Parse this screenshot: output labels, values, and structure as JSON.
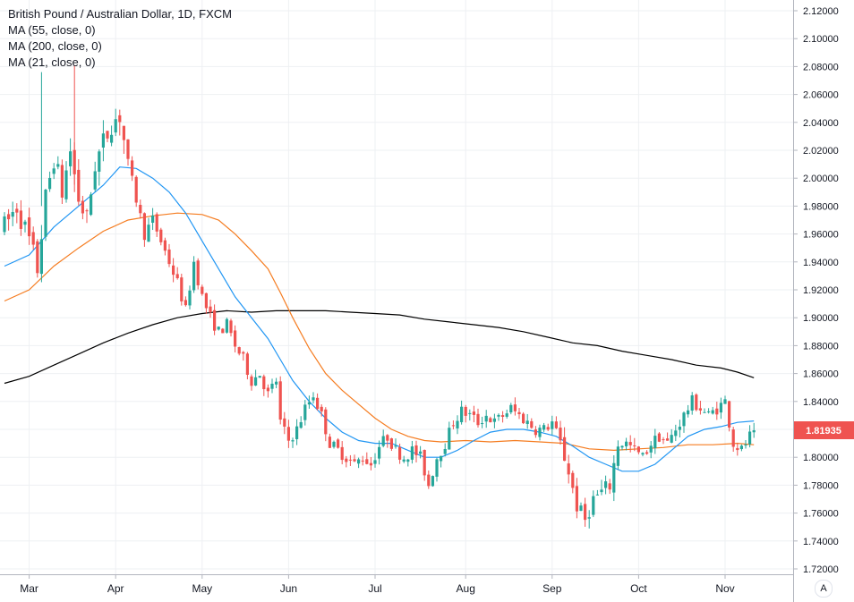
{
  "legend": {
    "title": "British Pound / Australian Dollar, 1D, FXCM",
    "ma55": "MA (55, close, 0)",
    "ma200": "MA (200, close, 0)",
    "ma21": "MA (21, close, 0)"
  },
  "price_label": "1.81935",
  "axis_mode_button": "A",
  "colors": {
    "up": "#26a69a",
    "down": "#ef5350",
    "ma21": "#2196f3",
    "ma55": "#f57c20",
    "ma200": "#000000",
    "price_tag": "#ef5350",
    "grid": "#eef0f3"
  },
  "chart_data": {
    "type": "candlestick",
    "y_ticks": [
      "2.12000",
      "2.10000",
      "2.08000",
      "2.06000",
      "2.04000",
      "2.02000",
      "2.00000",
      "1.98000",
      "1.96000",
      "1.94000",
      "1.92000",
      "1.90000",
      "1.88000",
      "1.86000",
      "1.84000",
      "1.82000",
      "1.80000",
      "1.78000",
      "1.76000",
      "1.74000",
      "1.72000"
    ],
    "ylim": [
      1.715,
      2.125
    ],
    "x_labels": [
      "Mar",
      "Apr",
      "May",
      "Jun",
      "Jul",
      "Aug",
      "Sep",
      "Oct",
      "Nov"
    ],
    "x_label_index": [
      6,
      27,
      48,
      69,
      90,
      112,
      133,
      154,
      175
    ],
    "last_price": 1.81935,
    "close_path": [
      [
        0,
        1.965
      ],
      [
        3,
        1.98
      ],
      [
        6,
        1.955
      ],
      [
        8,
        1.935
      ],
      [
        10,
        1.985
      ],
      [
        12,
        2.015
      ],
      [
        14,
        1.99
      ],
      [
        16,
        2.02
      ],
      [
        18,
        1.985
      ],
      [
        20,
        1.97
      ],
      [
        22,
        2.01
      ],
      [
        24,
        2.025
      ],
      [
        26,
        2.04
      ],
      [
        28,
        2.045
      ],
      [
        30,
        2.01
      ],
      [
        32,
        1.985
      ],
      [
        34,
        1.96
      ],
      [
        36,
        1.97
      ],
      [
        38,
        1.955
      ],
      [
        40,
        1.94
      ],
      [
        42,
        1.925
      ],
      [
        44,
        1.905
      ],
      [
        46,
        1.94
      ],
      [
        48,
        1.915
      ],
      [
        50,
        1.9
      ],
      [
        52,
        1.89
      ],
      [
        54,
        1.895
      ],
      [
        56,
        1.88
      ],
      [
        58,
        1.87
      ],
      [
        60,
        1.855
      ],
      [
        62,
        1.86
      ],
      [
        64,
        1.845
      ],
      [
        66,
        1.855
      ],
      [
        67,
        1.825
      ],
      [
        69,
        1.812
      ],
      [
        71,
        1.82
      ],
      [
        73,
        1.835
      ],
      [
        75,
        1.845
      ],
      [
        77,
        1.83
      ],
      [
        79,
        1.81
      ],
      [
        81,
        1.805
      ],
      [
        83,
        1.8
      ],
      [
        85,
        1.795
      ],
      [
        87,
        1.8
      ],
      [
        89,
        1.795
      ],
      [
        91,
        1.808
      ],
      [
        93,
        1.815
      ],
      [
        95,
        1.805
      ],
      [
        97,
        1.8
      ],
      [
        99,
        1.805
      ],
      [
        101,
        1.8
      ],
      [
        103,
        1.78
      ],
      [
        105,
        1.8
      ],
      [
        107,
        1.81
      ],
      [
        109,
        1.825
      ],
      [
        111,
        1.833
      ],
      [
        113,
        1.83
      ],
      [
        115,
        1.825
      ],
      [
        117,
        1.83
      ],
      [
        119,
        1.825
      ],
      [
        121,
        1.83
      ],
      [
        123,
        1.835
      ],
      [
        125,
        1.83
      ],
      [
        127,
        1.825
      ],
      [
        129,
        1.82
      ],
      [
        131,
        1.82
      ],
      [
        133,
        1.825
      ],
      [
        135,
        1.81
      ],
      [
        137,
        1.79
      ],
      [
        139,
        1.765
      ],
      [
        141,
        1.755
      ],
      [
        143,
        1.77
      ],
      [
        145,
        1.775
      ],
      [
        147,
        1.78
      ],
      [
        149,
        1.81
      ],
      [
        151,
        1.81
      ],
      [
        153,
        1.805
      ],
      [
        155,
        1.8
      ],
      [
        157,
        1.81
      ],
      [
        159,
        1.815
      ],
      [
        161,
        1.81
      ],
      [
        163,
        1.82
      ],
      [
        165,
        1.83
      ],
      [
        167,
        1.84
      ],
      [
        169,
        1.835
      ],
      [
        171,
        1.83
      ],
      [
        173,
        1.835
      ],
      [
        175,
        1.84
      ],
      [
        176,
        1.825
      ],
      [
        177,
        1.81
      ],
      [
        179,
        1.805
      ],
      [
        181,
        1.815
      ],
      [
        182,
        1.81935
      ]
    ],
    "ma21": [
      [
        0,
        1.937
      ],
      [
        6,
        1.945
      ],
      [
        12,
        1.965
      ],
      [
        18,
        1.98
      ],
      [
        24,
        1.995
      ],
      [
        28,
        2.008
      ],
      [
        32,
        2.007
      ],
      [
        36,
        2.0
      ],
      [
        40,
        1.99
      ],
      [
        44,
        1.975
      ],
      [
        48,
        1.955
      ],
      [
        52,
        1.935
      ],
      [
        56,
        1.915
      ],
      [
        60,
        1.9
      ],
      [
        64,
        1.885
      ],
      [
        67,
        1.87
      ],
      [
        70,
        1.855
      ],
      [
        74,
        1.84
      ],
      [
        78,
        1.828
      ],
      [
        82,
        1.818
      ],
      [
        86,
        1.812
      ],
      [
        90,
        1.81
      ],
      [
        94,
        1.81
      ],
      [
        98,
        1.805
      ],
      [
        102,
        1.8
      ],
      [
        106,
        1.8
      ],
      [
        110,
        1.805
      ],
      [
        114,
        1.812
      ],
      [
        118,
        1.818
      ],
      [
        122,
        1.82
      ],
      [
        126,
        1.82
      ],
      [
        130,
        1.818
      ],
      [
        134,
        1.815
      ],
      [
        138,
        1.808
      ],
      [
        142,
        1.8
      ],
      [
        146,
        1.795
      ],
      [
        150,
        1.79
      ],
      [
        154,
        1.79
      ],
      [
        158,
        1.795
      ],
      [
        162,
        1.805
      ],
      [
        166,
        1.815
      ],
      [
        170,
        1.82
      ],
      [
        174,
        1.822
      ],
      [
        178,
        1.825
      ],
      [
        182,
        1.826
      ]
    ],
    "ma55": [
      [
        0,
        1.912
      ],
      [
        6,
        1.92
      ],
      [
        12,
        1.937
      ],
      [
        18,
        1.95
      ],
      [
        24,
        1.962
      ],
      [
        30,
        1.97
      ],
      [
        36,
        1.973
      ],
      [
        42,
        1.975
      ],
      [
        48,
        1.974
      ],
      [
        52,
        1.97
      ],
      [
        56,
        1.96
      ],
      [
        60,
        1.948
      ],
      [
        64,
        1.935
      ],
      [
        67,
        1.918
      ],
      [
        70,
        1.9
      ],
      [
        74,
        1.878
      ],
      [
        78,
        1.86
      ],
      [
        82,
        1.848
      ],
      [
        86,
        1.838
      ],
      [
        90,
        1.828
      ],
      [
        94,
        1.82
      ],
      [
        98,
        1.815
      ],
      [
        102,
        1.812
      ],
      [
        106,
        1.811
      ],
      [
        112,
        1.812
      ],
      [
        118,
        1.811
      ],
      [
        124,
        1.812
      ],
      [
        130,
        1.811
      ],
      [
        136,
        1.81
      ],
      [
        142,
        1.806
      ],
      [
        148,
        1.805
      ],
      [
        154,
        1.806
      ],
      [
        160,
        1.807
      ],
      [
        166,
        1.809
      ],
      [
        172,
        1.809
      ],
      [
        178,
        1.81
      ],
      [
        182,
        1.809
      ]
    ],
    "ma200": [
      [
        0,
        1.853
      ],
      [
        6,
        1.858
      ],
      [
        12,
        1.866
      ],
      [
        18,
        1.874
      ],
      [
        24,
        1.882
      ],
      [
        30,
        1.889
      ],
      [
        36,
        1.895
      ],
      [
        42,
        1.9
      ],
      [
        48,
        1.903
      ],
      [
        54,
        1.905
      ],
      [
        60,
        1.904
      ],
      [
        66,
        1.905
      ],
      [
        72,
        1.905
      ],
      [
        78,
        1.905
      ],
      [
        84,
        1.904
      ],
      [
        90,
        1.903
      ],
      [
        96,
        1.902
      ],
      [
        102,
        1.899
      ],
      [
        108,
        1.897
      ],
      [
        114,
        1.895
      ],
      [
        120,
        1.893
      ],
      [
        126,
        1.89
      ],
      [
        132,
        1.886
      ],
      [
        138,
        1.882
      ],
      [
        144,
        1.88
      ],
      [
        150,
        1.876
      ],
      [
        156,
        1.873
      ],
      [
        162,
        1.87
      ],
      [
        168,
        1.866
      ],
      [
        174,
        1.864
      ],
      [
        178,
        1.861
      ],
      [
        182,
        1.857
      ]
    ]
  }
}
